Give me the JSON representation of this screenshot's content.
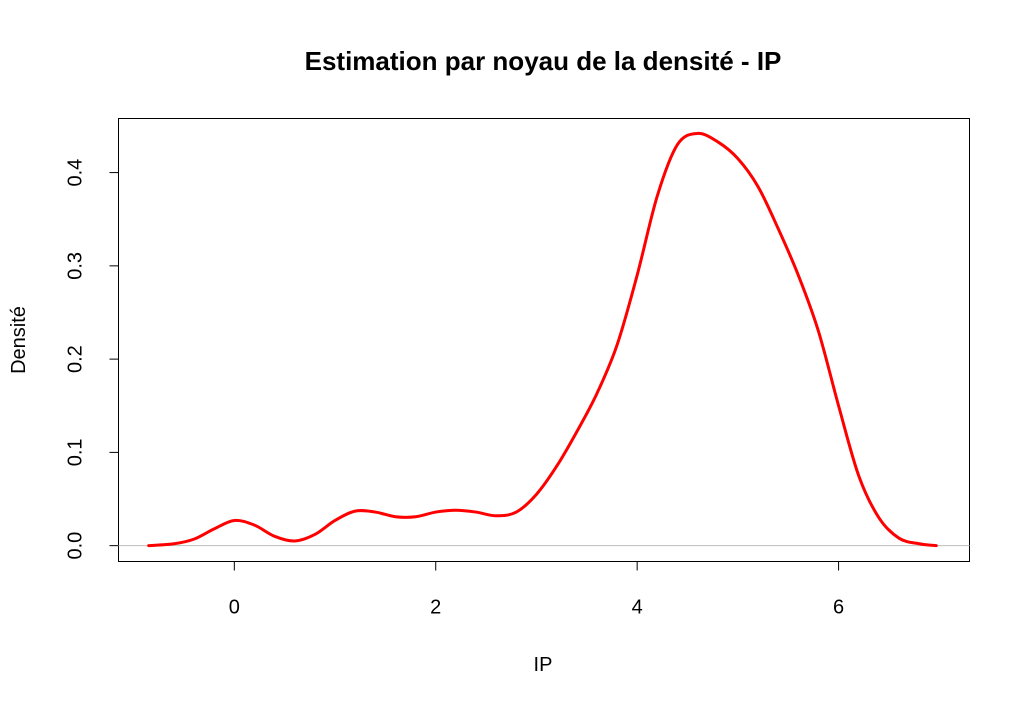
{
  "chart_data": {
    "type": "line",
    "title": "Estimation par noyau de la densité - IP",
    "xlabel": "IP",
    "ylabel": "Densité",
    "xlim": [
      -1.15,
      7.3
    ],
    "ylim": [
      -0.017,
      0.458
    ],
    "xticks": [
      0,
      2,
      4,
      6
    ],
    "xtick_labels": [
      "0",
      "2",
      "4",
      "6"
    ],
    "yticks": [
      0.0,
      0.1,
      0.2,
      0.3,
      0.4
    ],
    "ytick_labels": [
      "0.0",
      "0.1",
      "0.2",
      "0.3",
      "0.4"
    ],
    "grid": false,
    "legend": "none",
    "series": [
      {
        "color": "#ff0000",
        "x": [
          -0.85,
          -0.6,
          -0.4,
          -0.2,
          0.0,
          0.2,
          0.4,
          0.6,
          0.8,
          1.0,
          1.2,
          1.4,
          1.6,
          1.8,
          2.0,
          2.2,
          2.4,
          2.6,
          2.8,
          3.0,
          3.2,
          3.4,
          3.6,
          3.8,
          4.0,
          4.2,
          4.4,
          4.6,
          4.8,
          5.0,
          5.2,
          5.4,
          5.6,
          5.8,
          6.0,
          6.2,
          6.4,
          6.6,
          6.8,
          6.97
        ],
        "y": [
          0.0,
          0.002,
          0.007,
          0.018,
          0.027,
          0.022,
          0.01,
          0.005,
          0.012,
          0.027,
          0.037,
          0.036,
          0.031,
          0.031,
          0.036,
          0.038,
          0.036,
          0.032,
          0.036,
          0.055,
          0.085,
          0.122,
          0.163,
          0.215,
          0.29,
          0.375,
          0.43,
          0.442,
          0.433,
          0.415,
          0.385,
          0.34,
          0.29,
          0.23,
          0.15,
          0.075,
          0.03,
          0.008,
          0.002,
          0.0
        ]
      }
    ],
    "baseline_color": "#bebebe"
  }
}
